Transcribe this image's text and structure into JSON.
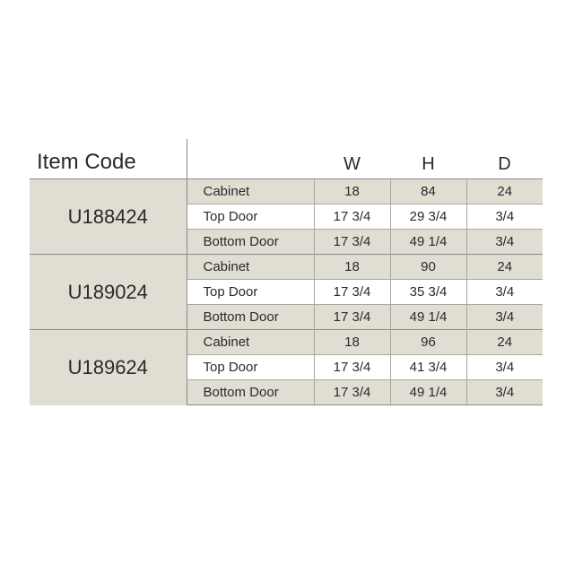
{
  "table": {
    "headers": {
      "item_code": "Item Code",
      "w": "W",
      "h": "H",
      "d": "D"
    },
    "colors": {
      "shade": "#e0ddd3",
      "white": "#ffffff"
    },
    "groups": [
      {
        "code": "U188424",
        "rows": [
          {
            "part": "Cabinet",
            "w": "18",
            "h": "84",
            "d": "24"
          },
          {
            "part": "Top Door",
            "w": "17 3/4",
            "h": "29 3/4",
            "d": "3/4"
          },
          {
            "part": "Bottom Door",
            "w": "17 3/4",
            "h": "49 1/4",
            "d": "3/4"
          }
        ]
      },
      {
        "code": "U189024",
        "rows": [
          {
            "part": "Cabinet",
            "w": "18",
            "h": "90",
            "d": "24"
          },
          {
            "part": "Top Door",
            "w": "17 3/4",
            "h": "35 3/4",
            "d": "3/4"
          },
          {
            "part": "Bottom Door",
            "w": "17 3/4",
            "h": "49 1/4",
            "d": "3/4"
          }
        ]
      },
      {
        "code": "U189624",
        "rows": [
          {
            "part": "Cabinet",
            "w": "18",
            "h": "96",
            "d": "24"
          },
          {
            "part": "Top Door",
            "w": "17 3/4",
            "h": "41 3/4",
            "d": "3/4"
          },
          {
            "part": "Bottom Door",
            "w": "17 3/4",
            "h": "49 1/4",
            "d": "3/4"
          }
        ]
      }
    ]
  }
}
